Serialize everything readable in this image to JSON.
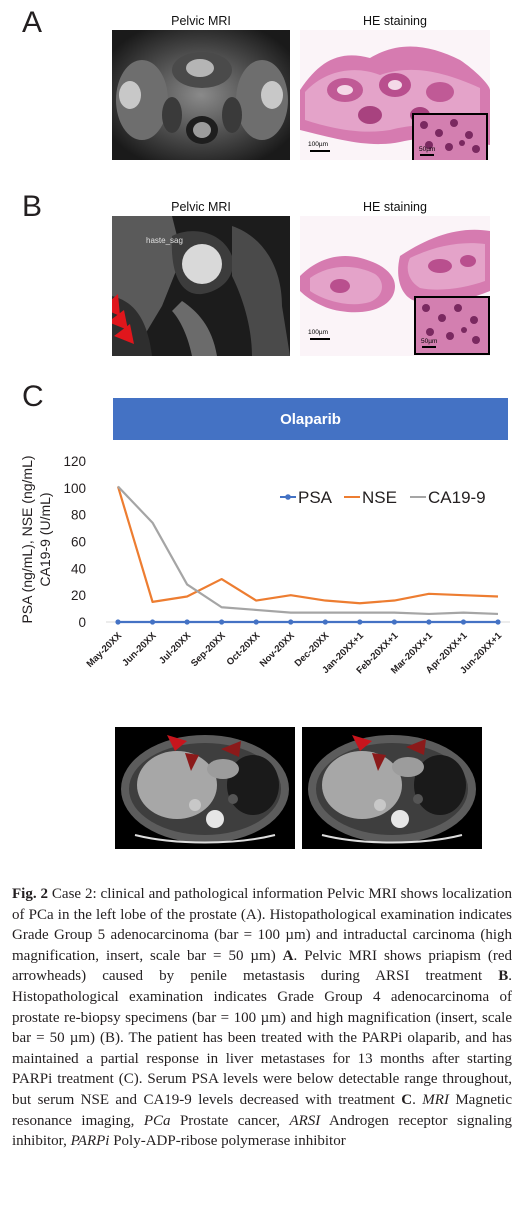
{
  "panel_labels": {
    "a": "A",
    "b": "B",
    "c": "C"
  },
  "panel_a": {
    "mri_title": "Pelvic MRI",
    "he_title": "HE staining",
    "he_scale": "100µm",
    "inset_scale": "50µm"
  },
  "panel_b": {
    "mri_title": "Pelvic MRI",
    "mri_overlay": "haste_sag",
    "he_title": "HE staining",
    "he_scale": "100µm",
    "inset_scale": "50µm"
  },
  "panel_c": {
    "treatment_label": "Olaparib"
  },
  "chart_data": {
    "type": "line",
    "title": "",
    "xlabel": "",
    "ylabel": "PSA (ng/mL), NSE (ng/mL)",
    "ylabel2": "CA19-9 (U/mL)",
    "ylim": [
      0,
      120
    ],
    "yticks": [
      "0",
      "20",
      "40",
      "60",
      "80",
      "100",
      "120"
    ],
    "grid": false,
    "legend_position": "top-right",
    "categories": [
      "May-20XX",
      "Jun-20XX",
      "Jul-20XX",
      "Sep-20XX",
      "Oct-20XX",
      "Nov-20XX",
      "Dec-20XX",
      "Jan-20XX+1",
      "Feb-20XX+1",
      "Mar-20XX+1",
      "Apr-20XX+1",
      "Jun-20XX+1"
    ],
    "series": [
      {
        "name": "PSA",
        "color": "#4472c4",
        "values": [
          0,
          0,
          0,
          0,
          0,
          0,
          0,
          0,
          0,
          0,
          0,
          0
        ]
      },
      {
        "name": "NSE",
        "color": "#ed7d31",
        "values": [
          101,
          15,
          19,
          32,
          16,
          20,
          16,
          14,
          16,
          21,
          20,
          19
        ]
      },
      {
        "name": "CA19-9",
        "color": "#a5a5a5",
        "values": [
          101,
          74,
          28,
          11,
          9,
          7,
          7,
          7,
          7,
          6,
          7,
          6
        ]
      }
    ]
  },
  "caption": {
    "fig_label": "Fig. 2",
    "p1": " Case 2: clinical and pathological information Pelvic MRI shows localization of PCa in the left lobe of the prostate (A). Histopathological examination indicates Grade Group 5 adenocarcinoma (bar = 100 µm) and intraductal carcinoma (high magnification, insert, scale bar = 50 µm) ",
    "a_ref": "A",
    "p2": ". Pelvic MRI shows priapism (red arrowheads) caused by penile metastasis during ARSI treatment ",
    "b_ref": "B",
    "p3": ". Histopathological examination indicates Grade Group 4 adenocarcinoma of prostate re-biopsy specimens (bar = 100 µm) and high magnification (insert, scale bar = 50 µm) (B). The patient has been treated with the PARPi olaparib, and has maintained a partial response in liver metastases for 13 months after starting PARPi treatment (C). Serum PSA levels were below detectable range throughout, but serum NSE and CA19-9 levels decreased with treatment ",
    "c_ref": "C",
    "p4": ". ",
    "abbr1_term": "MRI",
    "abbr1_def": " Magnetic resonance imaging, ",
    "abbr2_term": "PCa",
    "abbr2_def": " Prostate cancer, ",
    "abbr3_term": "ARSI",
    "abbr3_def": " Androgen receptor signaling inhibitor, ",
    "abbr4_term": "PARPi",
    "abbr4_def": " Poly-ADP-ribose polymerase inhibitor"
  }
}
